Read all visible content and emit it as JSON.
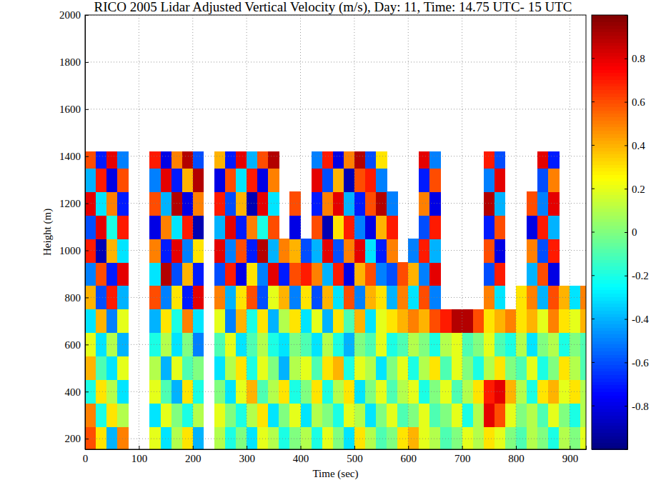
{
  "chart_data": {
    "type": "heatmap",
    "title": "RICO 2005 Lidar Adjusted Vertical Velocity (m/s), Day: 11, Time: 14.75 UTC- 15 UTC",
    "xlabel": "Time (sec)",
    "ylabel": "Height (m)",
    "xlim": [
      0,
      930
    ],
    "ylim": [
      155,
      2000
    ],
    "xticks": [
      0,
      100,
      200,
      300,
      400,
      500,
      600,
      700,
      800,
      900
    ],
    "yticks": [
      200,
      400,
      600,
      800,
      1000,
      1200,
      1400,
      1600,
      1800,
      2000
    ],
    "grid": true,
    "zlim": [
      -1,
      1
    ],
    "zticks": [
      -0.8,
      -0.6,
      -0.4,
      -0.2,
      0,
      0.2,
      0.4,
      0.6,
      0.8
    ],
    "x_edges": [
      0,
      20,
      40,
      60,
      80,
      100,
      120,
      140,
      160,
      180,
      200,
      220,
      240,
      260,
      280,
      300,
      320,
      340,
      360,
      380,
      400,
      420,
      440,
      460,
      480,
      500,
      520,
      540,
      560,
      580,
      600,
      620,
      640,
      660,
      680,
      700,
      720,
      740,
      760,
      780,
      800,
      820,
      840,
      860,
      880,
      900,
      920,
      930
    ],
    "y_edges": [
      155,
      250,
      350,
      450,
      550,
      650,
      750,
      850,
      950,
      1050,
      1150,
      1250,
      1350,
      1420
    ],
    "z": [
      [
        0.6,
        0.3,
        -0.4,
        0.5,
        null,
        null,
        0.2,
        -0.3,
        0.1,
        0.3,
        -0.4,
        null,
        0.1,
        -0.2,
        0.0,
        -0.3,
        0.2,
        0.1,
        -0.2,
        0.0,
        0.1,
        -0.2,
        0.2,
        0.0,
        -0.3,
        0.3,
        0.1,
        -0.1,
        0.0,
        0.3,
        0.4,
        0.2,
        0.1,
        -0.1,
        0.0,
        0.2,
        0.1,
        0.3,
        0.2,
        0.0,
        -0.1,
        0.1,
        0.0,
        -0.2,
        0.1,
        0.0,
        0.2
      ],
      [
        0.5,
        -0.2,
        0.3,
        0.1,
        null,
        null,
        -0.3,
        0.2,
        0.0,
        -0.2,
        0.1,
        null,
        0.2,
        0.0,
        -0.2,
        0.1,
        0.3,
        -0.3,
        0.0,
        0.2,
        -0.3,
        0.1,
        0.0,
        -0.2,
        0.2,
        0.1,
        -0.3,
        0.0,
        0.2,
        -0.1,
        0.0,
        0.2,
        -0.1,
        0.0,
        0.2,
        -0.2,
        0.1,
        0.8,
        0.6,
        0.2,
        0.0,
        0.1,
        -0.1,
        0.2,
        0.0,
        -0.2,
        0.1
      ],
      [
        -0.2,
        0.3,
        0.1,
        -0.3,
        null,
        null,
        0.2,
        -0.1,
        -0.4,
        0.3,
        -0.2,
        null,
        0.0,
        -0.3,
        0.2,
        0.4,
        -0.1,
        0.1,
        0.3,
        -0.2,
        0.0,
        0.3,
        -0.2,
        0.1,
        0.3,
        -0.3,
        0.0,
        0.2,
        -0.1,
        0.1,
        0.2,
        -0.2,
        0.0,
        0.2,
        -0.1,
        0.1,
        0.3,
        0.7,
        0.8,
        0.4,
        0.1,
        -0.2,
        0.3,
        0.4,
        0.2,
        0.3,
        0.1
      ],
      [
        0.4,
        -0.1,
        -0.3,
        0.2,
        null,
        null,
        0.1,
        -0.4,
        0.2,
        -0.1,
        0.0,
        null,
        -0.3,
        0.1,
        0.3,
        -0.2,
        0.2,
        0.0,
        -0.4,
        0.1,
        0.2,
        -0.1,
        0.3,
        0.4,
        -0.2,
        0.2,
        0.1,
        -0.3,
        0.0,
        0.2,
        -0.2,
        0.1,
        0.3,
        -0.1,
        0.2,
        0.0,
        -0.2,
        0.1,
        0.3,
        0.0,
        -0.1,
        0.2,
        -0.2,
        0.0,
        0.3,
        0.1,
        -0.1
      ],
      [
        0.2,
        -0.3,
        0.1,
        -0.4,
        null,
        null,
        -0.2,
        0.1,
        -0.3,
        0.0,
        -0.5,
        null,
        -0.1,
        0.2,
        -0.3,
        -0.1,
        0.1,
        -0.2,
        -0.3,
        0.0,
        -0.1,
        -0.3,
        0.1,
        -0.2,
        -0.4,
        0.0,
        -0.1,
        0.2,
        -0.2,
        -0.1,
        0.1,
        0.0,
        -0.2,
        0.1,
        0.2,
        -0.1,
        0.0,
        0.2,
        -0.1,
        -0.2,
        0.1,
        -0.3,
        0.0,
        0.1,
        -0.2,
        0.0,
        -0.1
      ],
      [
        -0.3,
        0.4,
        -0.5,
        0.2,
        null,
        null,
        -0.4,
        0.3,
        -0.2,
        0.5,
        -0.3,
        null,
        0.2,
        -0.5,
        0.4,
        -0.2,
        0.3,
        -0.4,
        0.1,
        0.3,
        -0.3,
        0.2,
        -0.4,
        0.3,
        -0.1,
        0.4,
        -0.3,
        0.2,
        0.3,
        0.4,
        0.5,
        0.4,
        0.6,
        0.7,
        0.9,
        0.9,
        0.6,
        0.3,
        0.4,
        0.5,
        0.3,
        0.4,
        0.2,
        0.5,
        0.3,
        0.2,
        0.4
      ],
      [
        0.4,
        -0.6,
        0.7,
        -0.4,
        null,
        null,
        0.6,
        -0.5,
        0.3,
        -0.7,
        0.8,
        null,
        0.5,
        -0.4,
        0.3,
        0.6,
        -0.6,
        0.2,
        0.4,
        -0.5,
        0.3,
        -0.6,
        0.4,
        -0.3,
        0.6,
        -0.5,
        0.4,
        0.3,
        -0.4,
        0.5,
        -0.3,
        0.6,
        -0.5,
        null,
        null,
        null,
        null,
        0.5,
        -0.3,
        null,
        0.3,
        0.5,
        -0.4,
        0.6,
        0.4,
        -0.3,
        0.5
      ],
      [
        -0.5,
        0.6,
        -0.7,
        0.8,
        null,
        null,
        -0.3,
        0.9,
        -0.6,
        0.4,
        -0.7,
        null,
        -0.6,
        0.7,
        -0.8,
        0.3,
        -0.5,
        0.8,
        -0.7,
        0.6,
        0.7,
        0.5,
        -0.4,
        0.7,
        -0.8,
        0.4,
        0.6,
        -0.5,
        -0.6,
        0.6,
        0.4,
        -0.5,
        0.8,
        null,
        null,
        null,
        null,
        -0.6,
        0.7,
        null,
        null,
        -0.4,
        0.6,
        -0.8,
        null,
        null,
        null
      ],
      [
        0.7,
        -0.9,
        0.4,
        -0.3,
        null,
        null,
        0.5,
        -0.7,
        0.8,
        -0.5,
        0.3,
        null,
        0.8,
        -0.5,
        0.6,
        -0.7,
        0.9,
        -0.4,
        0.5,
        0.4,
        -0.6,
        -0.4,
        0.8,
        -0.6,
        0.5,
        0.8,
        -0.3,
        -0.7,
        0.5,
        null,
        -0.5,
        0.7,
        -0.4,
        null,
        null,
        null,
        null,
        0.6,
        -0.8,
        null,
        null,
        0.5,
        -0.6,
        0.7,
        null,
        null,
        null
      ],
      [
        -0.6,
        0.8,
        -0.2,
        0.7,
        null,
        null,
        -0.8,
        0.5,
        -0.3,
        0.7,
        -0.9,
        null,
        -0.4,
        0.8,
        -0.7,
        0.5,
        -0.2,
        0.6,
        null,
        -0.8,
        null,
        0.6,
        -0.9,
        0.3,
        0.7,
        -0.5,
        -0.8,
        0.4,
        0.7,
        null,
        null,
        -0.6,
        0.7,
        null,
        null,
        null,
        null,
        -0.7,
        0.6,
        null,
        null,
        -0.8,
        0.7,
        -0.4,
        null,
        null,
        null
      ],
      [
        0.8,
        -0.3,
        0.5,
        -0.7,
        null,
        null,
        0.6,
        -0.4,
        0.9,
        -0.8,
        0.5,
        null,
        0.7,
        -0.6,
        0.4,
        -0.9,
        0.8,
        -0.3,
        null,
        0.6,
        null,
        -0.7,
        0.5,
        0.8,
        -0.4,
        -0.7,
        0.6,
        0.9,
        -0.5,
        null,
        null,
        0.5,
        -0.8,
        null,
        null,
        null,
        null,
        0.9,
        -0.4,
        null,
        null,
        0.6,
        -0.5,
        0.8,
        null,
        null,
        null
      ],
      [
        -0.4,
        0.7,
        -0.8,
        0.6,
        null,
        null,
        -0.5,
        0.8,
        -0.7,
        0.4,
        0.9,
        null,
        -0.8,
        0.6,
        -0.3,
        0.7,
        -0.8,
        0.5,
        null,
        null,
        null,
        0.8,
        -0.6,
        0.4,
        -0.9,
        0.6,
        0.7,
        -0.5,
        null,
        null,
        null,
        -0.7,
        0.6,
        null,
        null,
        null,
        null,
        -0.5,
        0.8,
        null,
        null,
        null,
        -0.6,
        0.5,
        null,
        null,
        null
      ],
      [
        0.6,
        -0.7,
        0.8,
        -0.5,
        null,
        null,
        0.7,
        -0.8,
        0.5,
        0.9,
        -0.6,
        null,
        0.4,
        -0.7,
        0.8,
        -0.4,
        0.6,
        0.9,
        null,
        null,
        null,
        -0.5,
        0.7,
        -0.8,
        0.5,
        0.9,
        -0.6,
        0.3,
        null,
        null,
        null,
        0.8,
        -0.5,
        null,
        null,
        null,
        null,
        0.7,
        -0.6,
        null,
        null,
        null,
        0.8,
        -0.7,
        null,
        null,
        null
      ]
    ]
  }
}
